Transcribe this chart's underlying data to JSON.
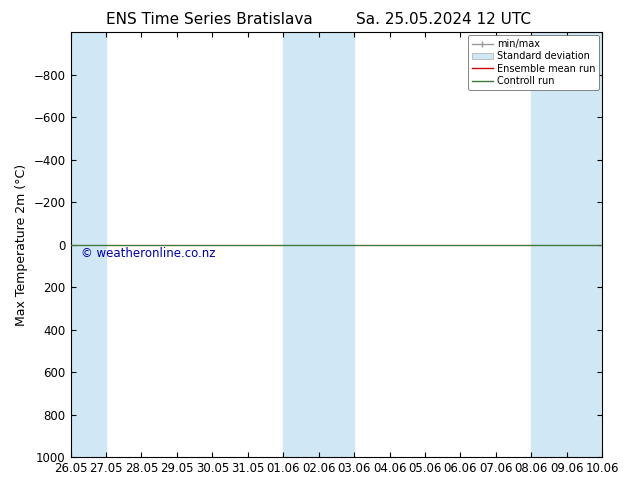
{
  "title_left": "ENS Time Series Bratislava",
  "title_right": "Sa. 25.05.2024 12 UTC",
  "ylabel": "Max Temperature 2m (°C)",
  "ylim": [
    1000,
    -1000
  ],
  "yticks": [
    -800,
    -600,
    -400,
    -200,
    0,
    200,
    400,
    600,
    800,
    1000
  ],
  "xlim_start": 0,
  "xlim_end": 15,
  "xtick_labels": [
    "26.05",
    "27.05",
    "28.05",
    "29.05",
    "30.05",
    "31.05",
    "01.06",
    "02.06",
    "03.06",
    "04.06",
    "05.06",
    "06.06",
    "07.06",
    "08.06",
    "09.06",
    "10.06"
  ],
  "xtick_positions": [
    0,
    1,
    2,
    3,
    4,
    5,
    6,
    7,
    8,
    9,
    10,
    11,
    12,
    13,
    14,
    15
  ],
  "shade_ranges": [
    [
      0,
      1
    ],
    [
      6,
      8
    ],
    [
      13,
      15
    ]
  ],
  "green_line_y": 0,
  "green_line_color": "#3a7d3a",
  "red_line_y": 0,
  "red_line_color": "#cc0000",
  "band_color": "#d0e8f5",
  "background_color": "#ffffff",
  "plot_bg_color": "#ffffff",
  "watermark": "© weatheronline.co.nz",
  "watermark_color": "#0000aa",
  "legend_items": [
    "min/max",
    "Standard deviation",
    "Ensemble mean run",
    "Controll run"
  ],
  "legend_colors": [
    "#b0c8d8",
    "#b0c8d8",
    "#cc0000",
    "#3a7d3a"
  ],
  "title_fontsize": 11,
  "axis_fontsize": 9,
  "tick_fontsize": 8.5
}
